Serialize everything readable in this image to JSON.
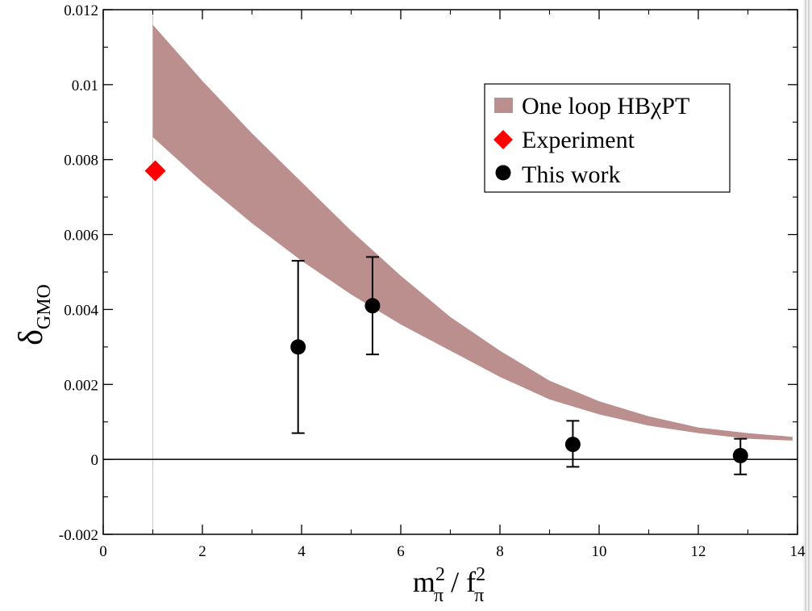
{
  "chart_data": {
    "type": "scatter",
    "xlim": [
      0,
      14
    ],
    "ylim": [
      -0.002,
      0.012
    ],
    "x_ticks": [
      "0",
      "2",
      "4",
      "6",
      "8",
      "10",
      "12",
      "14"
    ],
    "y_ticks": [
      "-0.002",
      "0",
      "0.002",
      "0.004",
      "0.006",
      "0.008",
      "0.01",
      "0.012"
    ],
    "x_tick_values": [
      0,
      2,
      4,
      6,
      8,
      10,
      12,
      14
    ],
    "y_tick_values": [
      -0.002,
      0,
      0.002,
      0.004,
      0.006,
      0.008,
      0.01,
      0.012
    ],
    "xlabel": {
      "base1": "m",
      "sub1": "π",
      "sup1": "2",
      "mid": " / ",
      "base2": "f",
      "sub2": "π",
      "sup2": "2"
    },
    "ylabel": {
      "base": "δ",
      "sub": "GMO"
    },
    "grid": false,
    "legend_position": "top-right",
    "reference_lines": [
      {
        "type": "horizontal",
        "y": 0,
        "color": "#000000"
      },
      {
        "type": "vertical",
        "x": 1.0,
        "color": "#cccccc"
      }
    ],
    "series": [
      {
        "name": "One loop HBχPT",
        "kind": "band",
        "color": "#bc8f8f",
        "x": [
          1.0,
          2.0,
          3.0,
          4.0,
          5.0,
          6.0,
          7.0,
          8.0,
          9.0,
          10.0,
          11.0,
          12.0,
          13.0,
          13.9
        ],
        "upper": [
          0.0116,
          0.0101,
          0.0087,
          0.0074,
          0.0061,
          0.0049,
          0.0038,
          0.0029,
          0.0021,
          0.00155,
          0.00115,
          0.00085,
          0.0007,
          0.0006
        ],
        "lower": [
          0.0086,
          0.0074,
          0.0063,
          0.0053,
          0.0044,
          0.0036,
          0.0029,
          0.0022,
          0.0016,
          0.0012,
          0.0009,
          0.0007,
          0.00055,
          0.0005
        ]
      },
      {
        "name": "Experiment",
        "kind": "points",
        "marker": "diamond",
        "color": "#ff0000",
        "points": [
          {
            "x": 1.05,
            "y": 0.0077
          }
        ]
      },
      {
        "name": "This work",
        "kind": "points",
        "marker": "circle",
        "color": "#000000",
        "points": [
          {
            "x": 3.93,
            "y": 0.003,
            "err_low": 0.0007,
            "err_high": 0.0053
          },
          {
            "x": 5.43,
            "y": 0.0041,
            "err_low": 0.0028,
            "err_high": 0.0054
          },
          {
            "x": 9.47,
            "y": 0.0004,
            "err_low": -0.0002,
            "err_high": 0.00103
          },
          {
            "x": 12.85,
            "y": 0.0001,
            "err_low": -0.0004,
            "err_high": 0.00055
          }
        ]
      }
    ]
  }
}
